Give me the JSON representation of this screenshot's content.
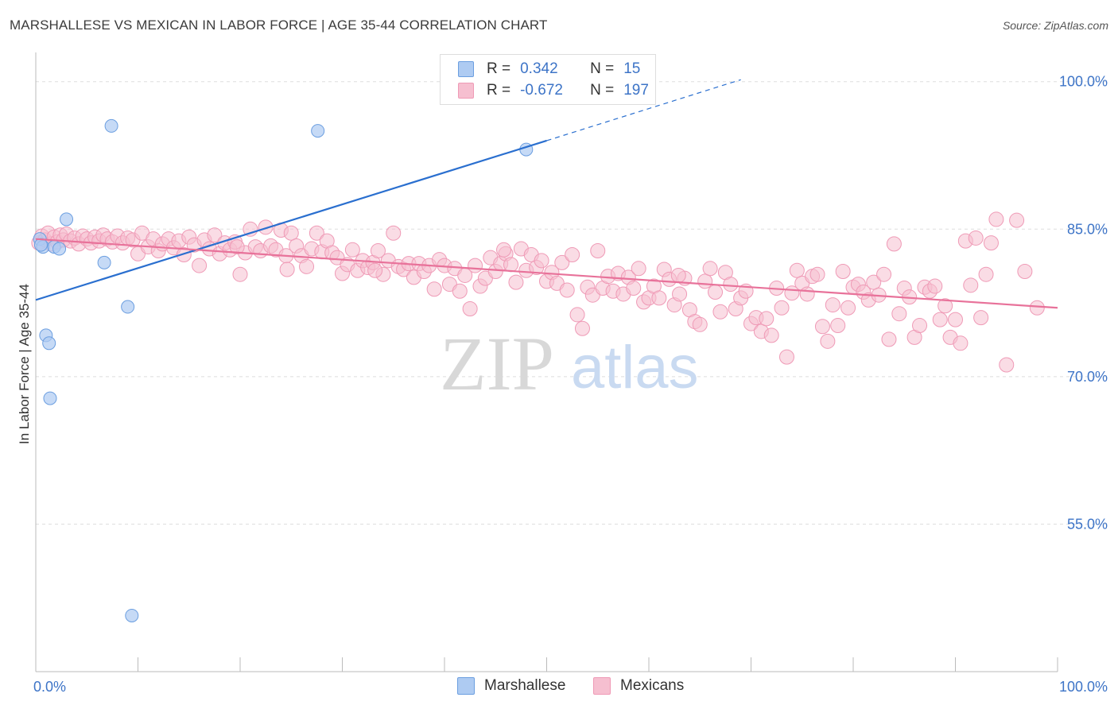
{
  "title": "MARSHALLESE VS MEXICAN IN LABOR FORCE | AGE 35-44 CORRELATION CHART",
  "source": "Source: ZipAtlas.com",
  "watermark": {
    "zip": "ZIP",
    "atlas": "atlas"
  },
  "legend": {
    "rows": [
      {
        "r_label": "R =",
        "r_value": "0.342",
        "n_label": "N =",
        "n_value": "15"
      },
      {
        "r_label": "R =",
        "r_value": "-0.672",
        "n_label": "N =",
        "n_value": "197"
      }
    ]
  },
  "bottom_legend": {
    "marshallese": "Marshallese",
    "mexicans": "Mexicans"
  },
  "colors": {
    "marshallese_fill": "#aecbf2",
    "marshallese_stroke": "#6b9ee0",
    "marshallese_line": "#2a6fcf",
    "mexicans_fill": "#f6bfd0",
    "mexicans_stroke": "#ef9ab6",
    "mexicans_line": "#e8729a",
    "tick_label": "#3d74c7",
    "grid": "#dddddd"
  },
  "chart_data": {
    "type": "scatter",
    "title": "MARSHALLESE VS MEXICAN IN LABOR FORCE | AGE 35-44 CORRELATION CHART",
    "xlabel": "",
    "ylabel": "In Labor Force | Age 35-44",
    "xlim": [
      0,
      100
    ],
    "ylim": [
      40,
      102
    ],
    "x_tick_labels": [
      "0.0%",
      "100.0%"
    ],
    "y_ticks": [
      100,
      85,
      70,
      55
    ],
    "y_tick_labels": [
      "100.0%",
      "85.0%",
      "70.0%",
      "55.0%"
    ],
    "grid": true,
    "legend_position": "top-center",
    "series": [
      {
        "name": "Marshallese",
        "r": 0.342,
        "n": 15,
        "trend": {
          "x0": 0,
          "y0": 77.8,
          "x1": 50,
          "y1": 94.0,
          "dashed_to_x": 69,
          "dashed_to_y": 100.2
        },
        "points": [
          [
            0.4,
            84.0
          ],
          [
            0.7,
            83.2
          ],
          [
            1.0,
            74.2
          ],
          [
            1.3,
            73.4
          ],
          [
            1.4,
            67.8
          ],
          [
            1.8,
            83.2
          ],
          [
            2.3,
            83.0
          ],
          [
            3.0,
            86.0
          ],
          [
            6.7,
            81.6
          ],
          [
            7.4,
            95.5
          ],
          [
            9.0,
            77.1
          ],
          [
            9.4,
            45.7
          ],
          [
            27.6,
            95.0
          ],
          [
            48.0,
            93.1
          ],
          [
            0.5,
            83.4
          ]
        ]
      },
      {
        "name": "Mexicans",
        "r": -0.672,
        "n": 197,
        "trend": {
          "x0": 0,
          "y0": 84.0,
          "x1": 100,
          "y1": 77.0
        },
        "points": [
          [
            0.3,
            83.6
          ],
          [
            0.6,
            84.3
          ],
          [
            0.9,
            83.9
          ],
          [
            1.2,
            84.6
          ],
          [
            1.5,
            83.5
          ],
          [
            1.8,
            84.2
          ],
          [
            2.1,
            83.7
          ],
          [
            2.4,
            84.4
          ],
          [
            2.7,
            83.9
          ],
          [
            3.0,
            84.5
          ],
          [
            3.4,
            83.8
          ],
          [
            3.8,
            84.1
          ],
          [
            4.2,
            83.5
          ],
          [
            4.6,
            84.3
          ],
          [
            5.0,
            84.0
          ],
          [
            5.4,
            83.6
          ],
          [
            5.8,
            84.2
          ],
          [
            6.2,
            83.8
          ],
          [
            6.6,
            84.4
          ],
          [
            7.0,
            84.0
          ],
          [
            7.5,
            83.7
          ],
          [
            8.0,
            84.3
          ],
          [
            8.5,
            83.6
          ],
          [
            9.0,
            84.1
          ],
          [
            9.5,
            83.9
          ],
          [
            10.0,
            82.5
          ],
          [
            10.4,
            84.6
          ],
          [
            11.0,
            83.2
          ],
          [
            11.5,
            84.0
          ],
          [
            12.0,
            82.8
          ],
          [
            12.4,
            83.5
          ],
          [
            13.0,
            84.0
          ],
          [
            13.5,
            83.1
          ],
          [
            14.0,
            83.8
          ],
          [
            14.5,
            82.4
          ],
          [
            15.0,
            84.2
          ],
          [
            15.5,
            83.4
          ],
          [
            16.0,
            81.3
          ],
          [
            16.5,
            83.9
          ],
          [
            17.0,
            83.0
          ],
          [
            17.5,
            84.4
          ],
          [
            18.0,
            82.5
          ],
          [
            18.5,
            83.6
          ],
          [
            19.0,
            82.9
          ],
          [
            19.5,
            83.7
          ],
          [
            20.0,
            80.4
          ],
          [
            20.5,
            82.6
          ],
          [
            21.0,
            85.0
          ],
          [
            21.5,
            83.2
          ],
          [
            22.0,
            82.8
          ],
          [
            22.5,
            85.2
          ],
          [
            23.0,
            83.3
          ],
          [
            23.5,
            82.9
          ],
          [
            24.0,
            84.9
          ],
          [
            24.5,
            82.3
          ],
          [
            25.0,
            84.6
          ],
          [
            25.5,
            83.3
          ],
          [
            26.0,
            82.3
          ],
          [
            26.5,
            81.2
          ],
          [
            27.0,
            83.0
          ],
          [
            27.5,
            84.6
          ],
          [
            28.0,
            82.7
          ],
          [
            28.5,
            83.8
          ],
          [
            29.0,
            82.6
          ],
          [
            29.5,
            82.1
          ],
          [
            30.0,
            80.5
          ],
          [
            30.5,
            81.4
          ],
          [
            31.0,
            82.9
          ],
          [
            31.5,
            80.8
          ],
          [
            32.0,
            81.8
          ],
          [
            32.5,
            81.1
          ],
          [
            33.0,
            81.6
          ],
          [
            33.5,
            82.8
          ],
          [
            34.0,
            80.4
          ],
          [
            34.5,
            81.8
          ],
          [
            35.0,
            84.6
          ],
          [
            35.5,
            81.2
          ],
          [
            36.0,
            80.9
          ],
          [
            36.5,
            81.5
          ],
          [
            37.0,
            80.1
          ],
          [
            37.5,
            81.5
          ],
          [
            38.0,
            80.7
          ],
          [
            38.5,
            81.3
          ],
          [
            39.0,
            78.9
          ],
          [
            39.5,
            81.9
          ],
          [
            40.0,
            81.3
          ],
          [
            40.5,
            79.4
          ],
          [
            41.0,
            81.0
          ],
          [
            41.5,
            78.7
          ],
          [
            42.0,
            80.3
          ],
          [
            42.5,
            76.9
          ],
          [
            43.0,
            81.3
          ],
          [
            43.5,
            79.2
          ],
          [
            44.0,
            80.0
          ],
          [
            44.5,
            82.1
          ],
          [
            45.0,
            80.7
          ],
          [
            45.5,
            81.5
          ],
          [
            46.0,
            82.5
          ],
          [
            46.5,
            81.4
          ],
          [
            47.0,
            79.6
          ],
          [
            47.5,
            83.0
          ],
          [
            48.0,
            80.8
          ],
          [
            48.5,
            82.4
          ],
          [
            49.0,
            81.1
          ],
          [
            49.5,
            81.8
          ],
          [
            50.0,
            79.7
          ],
          [
            50.5,
            80.6
          ],
          [
            51.0,
            79.5
          ],
          [
            51.5,
            81.6
          ],
          [
            52.0,
            78.8
          ],
          [
            52.5,
            82.4
          ],
          [
            53.0,
            76.3
          ],
          [
            53.5,
            74.9
          ],
          [
            54.0,
            79.1
          ],
          [
            54.5,
            78.3
          ],
          [
            55.0,
            82.8
          ],
          [
            55.5,
            79.0
          ],
          [
            56.0,
            80.2
          ],
          [
            56.5,
            78.7
          ],
          [
            57.0,
            80.5
          ],
          [
            57.5,
            78.4
          ],
          [
            58.0,
            80.1
          ],
          [
            58.5,
            79.0
          ],
          [
            59.0,
            81.0
          ],
          [
            59.5,
            77.6
          ],
          [
            60.0,
            78.0
          ],
          [
            60.5,
            79.2
          ],
          [
            61.0,
            78.0
          ],
          [
            61.5,
            80.9
          ],
          [
            62.0,
            79.9
          ],
          [
            62.5,
            77.3
          ],
          [
            63.0,
            78.4
          ],
          [
            63.5,
            80.0
          ],
          [
            64.0,
            76.8
          ],
          [
            64.5,
            75.6
          ],
          [
            65.0,
            75.3
          ],
          [
            65.5,
            79.7
          ],
          [
            66.0,
            81.0
          ],
          [
            66.5,
            78.6
          ],
          [
            67.0,
            76.6
          ],
          [
            67.5,
            80.6
          ],
          [
            68.0,
            79.4
          ],
          [
            68.5,
            76.9
          ],
          [
            69.0,
            78.0
          ],
          [
            69.5,
            78.7
          ],
          [
            70.0,
            75.4
          ],
          [
            70.5,
            76.0
          ],
          [
            71.0,
            74.6
          ],
          [
            71.5,
            75.9
          ],
          [
            72.0,
            74.2
          ],
          [
            72.5,
            79.0
          ],
          [
            73.0,
            77.0
          ],
          [
            73.5,
            72.0
          ],
          [
            74.0,
            78.5
          ],
          [
            74.5,
            80.8
          ],
          [
            75.0,
            79.5
          ],
          [
            75.5,
            78.4
          ],
          [
            76.0,
            80.2
          ],
          [
            76.5,
            80.4
          ],
          [
            77.0,
            75.1
          ],
          [
            77.5,
            73.6
          ],
          [
            78.0,
            77.3
          ],
          [
            78.5,
            75.2
          ],
          [
            79.0,
            80.7
          ],
          [
            79.5,
            77.0
          ],
          [
            80.0,
            79.1
          ],
          [
            80.5,
            79.4
          ],
          [
            81.0,
            78.6
          ],
          [
            81.5,
            77.8
          ],
          [
            82.0,
            79.6
          ],
          [
            82.5,
            78.3
          ],
          [
            83.0,
            80.4
          ],
          [
            83.5,
            73.8
          ],
          [
            84.0,
            83.5
          ],
          [
            84.5,
            76.4
          ],
          [
            85.0,
            79.0
          ],
          [
            85.5,
            78.1
          ],
          [
            86.0,
            74.0
          ],
          [
            86.5,
            75.2
          ],
          [
            87.0,
            79.1
          ],
          [
            87.5,
            78.7
          ],
          [
            88.0,
            79.2
          ],
          [
            88.5,
            75.8
          ],
          [
            89.0,
            77.2
          ],
          [
            89.5,
            74.0
          ],
          [
            90.0,
            75.8
          ],
          [
            90.5,
            73.4
          ],
          [
            91.0,
            83.8
          ],
          [
            91.5,
            79.3
          ],
          [
            92.0,
            84.1
          ],
          [
            92.5,
            76.0
          ],
          [
            93.0,
            80.4
          ],
          [
            93.5,
            83.6
          ],
          [
            94.0,
            86.0
          ],
          [
            95.0,
            71.2
          ],
          [
            96.0,
            85.9
          ],
          [
            96.8,
            80.7
          ],
          [
            98.0,
            77.0
          ],
          [
            62.9,
            80.3
          ],
          [
            45.8,
            82.9
          ],
          [
            33.2,
            80.8
          ],
          [
            24.6,
            80.9
          ],
          [
            19.7,
            83.2
          ]
        ]
      }
    ]
  }
}
